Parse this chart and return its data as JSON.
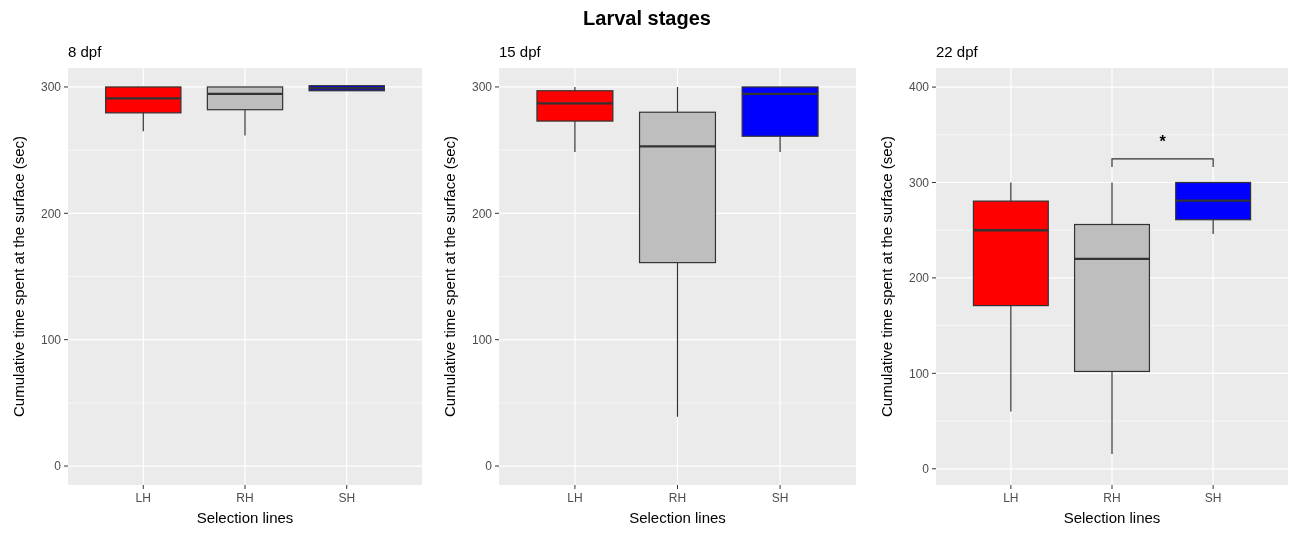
{
  "chart_data": [
    {
      "type": "box",
      "subtitle": "8 dpf",
      "xlabel": "Selection lines",
      "ylabel": "Cumulative time spent at the surface (sec)",
      "categories": [
        "LH",
        "RH",
        "SH"
      ],
      "colors": [
        "#ff0000",
        "#bebebe",
        "#0000ff"
      ],
      "ylim": [
        -15,
        315
      ],
      "yticks": [
        0,
        100,
        200,
        300
      ],
      "grid": true,
      "boxes": [
        {
          "low": 265,
          "q1": 279.5,
          "median": 291,
          "q3": 300,
          "high": 300
        },
        {
          "low": 261.5,
          "q1": 282,
          "median": 294.5,
          "q3": 300,
          "high": 300
        },
        {
          "low": 297,
          "q1": 297,
          "median": 299,
          "q3": 301,
          "high": 301
        }
      ]
    },
    {
      "type": "box",
      "title": "Larval stages",
      "subtitle": "15 dpf",
      "xlabel": "Selection lines",
      "ylabel": "Cumulative time spent at the surface (sec)",
      "categories": [
        "LH",
        "RH",
        "SH"
      ],
      "colors": [
        "#ff0000",
        "#bebebe",
        "#0000ff"
      ],
      "ylim": [
        -15,
        315
      ],
      "yticks": [
        0,
        100,
        200,
        300
      ],
      "grid": true,
      "boxes": [
        {
          "low": 248.5,
          "q1": 273,
          "median": 287,
          "q3": 297,
          "high": 300
        },
        {
          "low": 39,
          "q1": 161,
          "median": 253,
          "q3": 280,
          "high": 300
        },
        {
          "low": 248.5,
          "q1": 261,
          "median": 294.5,
          "q3": 300,
          "high": 300
        }
      ]
    },
    {
      "type": "box",
      "subtitle": "22 dpf",
      "xlabel": "Selection lines",
      "ylabel": "Cumulative time spent at the surface (sec)",
      "categories": [
        "LH",
        "RH",
        "SH"
      ],
      "colors": [
        "#ff0000",
        "#bebebe",
        "#0000ff"
      ],
      "ylim": [
        -17,
        420
      ],
      "yticks": [
        0,
        100,
        200,
        300,
        400
      ],
      "grid": true,
      "annotations": [
        "*"
      ],
      "boxes": [
        {
          "low": 60,
          "q1": 171,
          "median": 250,
          "q3": 280.5,
          "high": 300
        },
        {
          "low": 15.5,
          "q1": 102,
          "median": 220,
          "q3": 256,
          "high": 300
        },
        {
          "low": 246,
          "q1": 261,
          "median": 281,
          "q3": 300,
          "high": 300
        }
      ]
    }
  ]
}
